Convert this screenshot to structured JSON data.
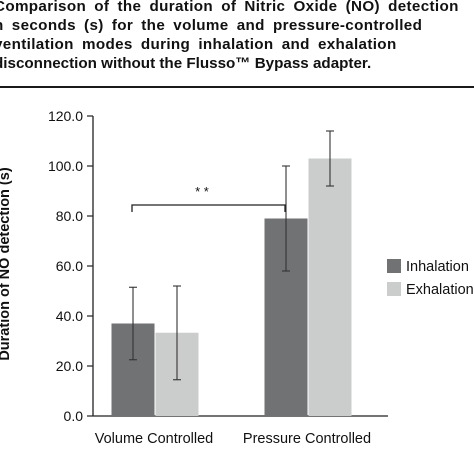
{
  "caption": {
    "lines": [
      "Comparison of the duration of Nitric Oxide (NO) detection",
      "n seconds (s) for the volume and pressure-controlled",
      "ventilation modes during inhalation and exhalation",
      "disconnection without the Flusso™ Bypass adapter."
    ]
  },
  "chart_data": {
    "type": "bar",
    "title": "",
    "xlabel": "",
    "ylabel": "Duration of NO detection (s)",
    "categories": [
      "Volume Controlled",
      "Pressure Controlled"
    ],
    "ylim": [
      0,
      120
    ],
    "yticks": [
      "0.0",
      "20.0",
      "40.0",
      "60.0",
      "80.0",
      "100.0",
      "120.0"
    ],
    "grid": false,
    "legend_position": "right",
    "series": [
      {
        "name": "Inhalation",
        "color": "#707274",
        "values": [
          37.0,
          79.0
        ],
        "error_low": [
          22.5,
          58.0
        ],
        "error_high": [
          51.5,
          100.0
        ]
      },
      {
        "name": "Exhalation",
        "color": "#cbcdcc",
        "values": [
          33.3,
          103.0
        ],
        "error_low": [
          14.5,
          92.0
        ],
        "error_high": [
          52.0,
          114.0
        ]
      }
    ],
    "annotation": {
      "text": "* *",
      "between": [
        "Volume Controlled",
        "Pressure Controlled"
      ],
      "series": "Inhalation"
    }
  }
}
